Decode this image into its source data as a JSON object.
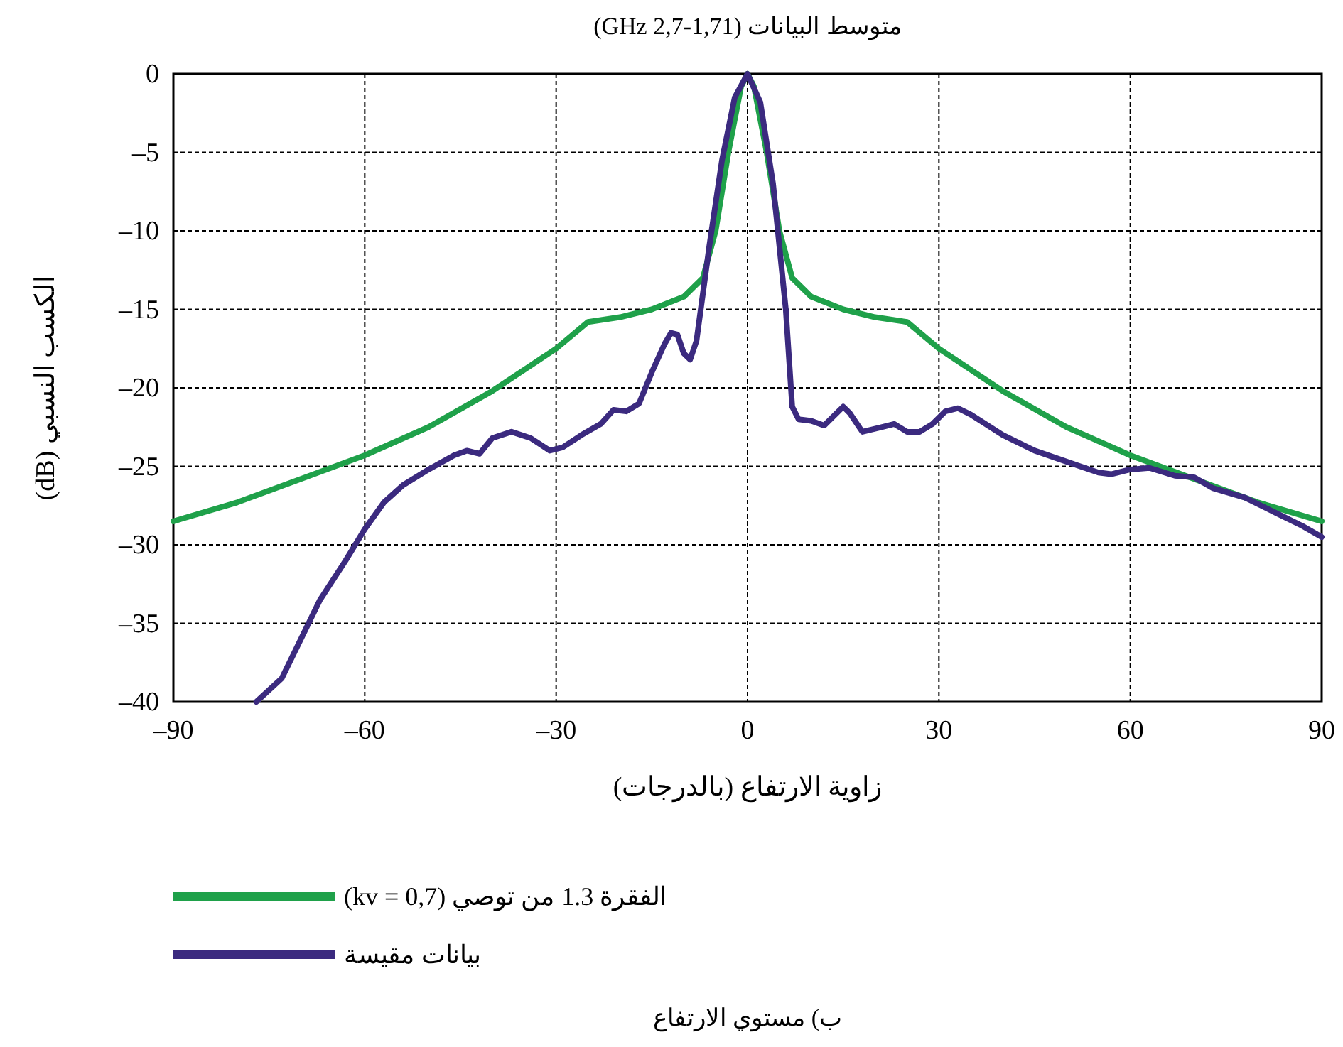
{
  "chart_data": {
    "type": "line",
    "title": "متوسط البيانات (1,71-2,7 GHz)",
    "xlabel": "زاوية الارتفاع (بالدرجات)",
    "ylabel": "الكسب النسبي (dB)",
    "xlim": [
      -90,
      90
    ],
    "ylim": [
      -40,
      0
    ],
    "xticks": [
      {
        "value": -90,
        "label": "–90"
      },
      {
        "value": -60,
        "label": "–60"
      },
      {
        "value": -30,
        "label": "–30"
      },
      0,
      30,
      60,
      90
    ],
    "yticks": [
      {
        "value": -40,
        "label": "–40"
      },
      {
        "value": -35,
        "label": "–35"
      },
      {
        "value": -30,
        "label": "–30"
      },
      {
        "value": -25,
        "label": "–25"
      },
      {
        "value": -20,
        "label": "–20"
      },
      {
        "value": -15,
        "label": "–15"
      },
      {
        "value": -10,
        "label": "–10"
      },
      {
        "value": -5,
        "label": "–5"
      },
      0
    ],
    "grid": true,
    "legend": "bottom",
    "series": [
      {
        "name": "الفقرة 1.3 من توصي (kv = 0,7)",
        "color": "#1fa14a",
        "x": [
          -90,
          -80,
          -70,
          -60,
          -50,
          -40,
          -30,
          -25,
          -20,
          -15,
          -10,
          -7,
          -5,
          -3,
          -1,
          0,
          1,
          3,
          5,
          7,
          10,
          15,
          20,
          25,
          30,
          40,
          50,
          60,
          70,
          80,
          90
        ],
        "values": [
          -28.5,
          -27.3,
          -25.8,
          -24.3,
          -22.5,
          -20.2,
          -17.5,
          -15.8,
          -15.5,
          -15,
          -14.2,
          -13,
          -10,
          -5,
          -0.8,
          0,
          -0.8,
          -5,
          -10,
          -13,
          -14.2,
          -15,
          -15.5,
          -15.8,
          -17.5,
          -20.2,
          -22.5,
          -24.3,
          -25.8,
          -27.3,
          -28.5
        ]
      },
      {
        "name": "بيانات مقيسة",
        "color": "#3b2a7f",
        "x": [
          -77,
          -73,
          -70,
          -67,
          -63,
          -60,
          -57,
          -54,
          -50,
          -46,
          -44,
          -42,
          -40,
          -37,
          -34,
          -31,
          -29,
          -26,
          -23,
          -21,
          -19,
          -17,
          -15,
          -13,
          -12,
          -11,
          -10,
          -9,
          -8,
          -6,
          -4,
          -2,
          0,
          2,
          4,
          6,
          7,
          8,
          10,
          12,
          14,
          15,
          16,
          18,
          21,
          23,
          25,
          27,
          29,
          31,
          33,
          35,
          40,
          45,
          50,
          55,
          57,
          60,
          63,
          67,
          70,
          73,
          78,
          83,
          87,
          90
        ],
        "values": [
          -40,
          -38.5,
          -36,
          -33.5,
          -31,
          -29,
          -27.3,
          -26.2,
          -25.2,
          -24.3,
          -24,
          -24.2,
          -23.2,
          -22.8,
          -23.2,
          -24,
          -23.8,
          -23,
          -22.3,
          -21.4,
          -21.5,
          -21,
          -19,
          -17.2,
          -16.5,
          -16.6,
          -17.8,
          -18.2,
          -17,
          -11,
          -5.5,
          -1.5,
          0,
          -1.8,
          -7,
          -15,
          -21.2,
          -22,
          -22.1,
          -22.4,
          -21.6,
          -21.2,
          -21.6,
          -22.8,
          -22.5,
          -22.3,
          -22.8,
          -22.8,
          -22.3,
          -21.5,
          -21.3,
          -21.7,
          -23,
          -24,
          -24.7,
          -25.4,
          -25.5,
          -25.2,
          -25.1,
          -25.6,
          -25.7,
          -26.4,
          -27,
          -28,
          -28.8,
          -29.5
        ]
      }
    ],
    "annotations": [
      "ب) مستوي الارتفاع"
    ]
  }
}
